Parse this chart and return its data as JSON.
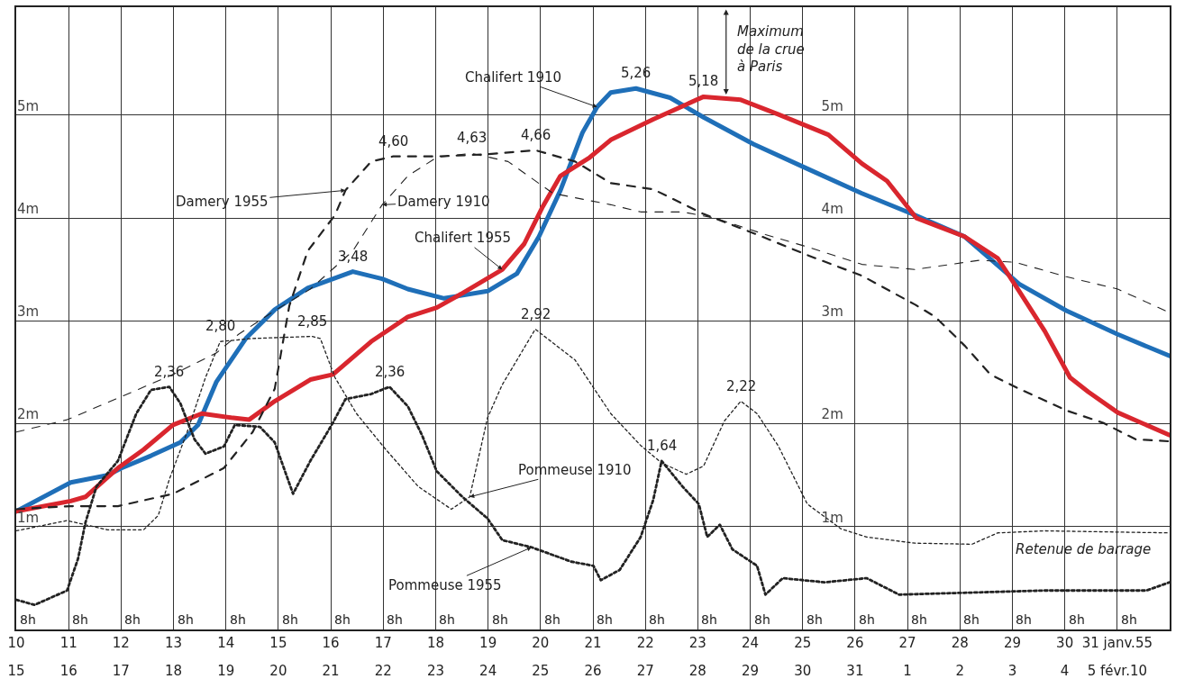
{
  "chart_data": {
    "type": "line",
    "xlim": [
      10,
      32
    ],
    "ylim": [
      0,
      6.05
    ],
    "xticks": [
      10,
      11,
      12,
      13,
      14,
      15,
      16,
      17,
      18,
      19,
      20,
      21,
      22,
      23,
      24,
      25,
      26,
      27,
      28,
      29,
      30,
      {
        "value": 31,
        "label": "31 janv.55"
      }
    ],
    "x2lim": [
      "--01-15",
      "--02-06"
    ],
    "x2ticks": [
      {
        "value": "--01-15",
        "label": "15"
      },
      {
        "value": "--01-16",
        "label": "16"
      },
      {
        "value": "--01-17",
        "label": "17"
      },
      {
        "value": "--01-18",
        "label": "18"
      },
      {
        "value": "--01-19",
        "label": "19"
      },
      {
        "value": "--01-20",
        "label": "20"
      },
      {
        "value": "--01-21",
        "label": "21"
      },
      {
        "value": "--01-22",
        "label": "22"
      },
      {
        "value": "--01-23",
        "label": "23"
      },
      {
        "value": "--01-24",
        "label": "24"
      },
      {
        "value": "--01-25",
        "label": "25"
      },
      {
        "value": "--01-26",
        "label": "26"
      },
      {
        "value": "--01-27",
        "label": "27"
      },
      {
        "value": "--01-28",
        "label": "28"
      },
      {
        "value": "--01-29",
        "label": "29"
      },
      {
        "value": "--01-30",
        "label": "30"
      },
      {
        "value": "--01-31",
        "label": "31"
      },
      {
        "value": "--02-01",
        "label": "1"
      },
      {
        "value": "--02-02",
        "label": "2"
      },
      {
        "value": "--02-03",
        "label": "3"
      },
      {
        "value": "--02-04",
        "label": "4"
      },
      {
        "value": "--02-05",
        "label": "5 févr.10"
      }
    ],
    "yticks": [
      {
        "value": 1,
        "label": "1m"
      },
      {
        "value": 2,
        "label": "2m"
      },
      {
        "value": 3,
        "label": "3m"
      },
      {
        "value": 4,
        "label": "4m"
      },
      {
        "value": 5,
        "label": "5m"
      }
    ],
    "y2lim": [
      0,
      6.05
    ],
    "y2ticks": [
      {
        "value": 1,
        "label": "1m"
      },
      {
        "value": 2,
        "label": "2m"
      },
      {
        "value": 3,
        "label": "3m"
      },
      {
        "value": 4,
        "label": "4m"
      },
      {
        "value": 5,
        "label": "5m"
      }
    ],
    "grid": true,
    "series": [
      {
        "name": "Chalifert 1910",
        "color": "#1f6fb8",
        "line_style": "solid",
        "x": [
          10,
          11.04,
          11.74,
          12.01,
          12.57,
          13.13,
          13.47,
          13.82,
          14.38,
          14.93,
          15.56,
          16.42,
          16.98,
          17.47,
          18.16,
          18.99,
          19.55,
          19.97,
          20.38,
          20.8,
          21.08,
          21.34,
          21.82,
          22.47,
          23.11,
          24.06,
          25.09,
          26.13,
          27.14,
          28.09,
          28.72,
          29.13,
          30.03,
          31.01,
          32
        ],
        "values": [
          1.15,
          1.43,
          1.5,
          1.57,
          1.69,
          1.82,
          1.99,
          2.41,
          2.83,
          3.11,
          3.32,
          3.48,
          3.41,
          3.31,
          3.22,
          3.29,
          3.46,
          3.82,
          4.27,
          4.83,
          5.08,
          5.22,
          5.26,
          5.17,
          4.98,
          4.72,
          4.48,
          4.24,
          4.03,
          3.82,
          3.54,
          3.36,
          3.1,
          2.87,
          2.66
        ],
        "value_labels": [
          null,
          null,
          null,
          null,
          null,
          null,
          null,
          null,
          null,
          null,
          null,
          "3,48",
          null,
          null,
          null,
          null,
          null,
          null,
          null,
          null,
          null,
          null,
          "5,26",
          null,
          null,
          null,
          null,
          null,
          null,
          null,
          null,
          null,
          null,
          null,
          null
        ]
      },
      {
        "name": "Chalifert 1955",
        "color": "#d9262e",
        "line_style": "solid",
        "x": [
          10,
          11.04,
          11.32,
          11.94,
          12.43,
          12.99,
          13.54,
          14.1,
          14.44,
          14.93,
          15.61,
          16.04,
          16.77,
          17.47,
          18.02,
          18.51,
          19.27,
          19.69,
          20.03,
          20.38,
          20.94,
          21.34,
          22.15,
          23.11,
          23.82,
          24.53,
          25.49,
          26.13,
          26.61,
          27.17,
          28.09,
          28.72,
          29.13,
          29.62,
          30.1,
          30.45,
          31.01,
          32
        ],
        "values": [
          1.15,
          1.25,
          1.29,
          1.57,
          1.75,
          1.99,
          2.1,
          2.06,
          2.04,
          2.22,
          2.43,
          2.48,
          2.8,
          3.04,
          3.13,
          3.27,
          3.5,
          3.75,
          4.1,
          4.41,
          4.59,
          4.76,
          4.96,
          5.18,
          5.15,
          5.01,
          4.81,
          4.53,
          4.36,
          4.0,
          3.82,
          3.61,
          3.29,
          2.9,
          2.45,
          2.31,
          2.11,
          1.89
        ],
        "value_labels": [
          null,
          null,
          null,
          null,
          null,
          null,
          null,
          null,
          null,
          null,
          null,
          null,
          null,
          null,
          null,
          null,
          null,
          null,
          null,
          null,
          null,
          null,
          null,
          "5,18",
          null,
          null,
          null,
          null,
          null,
          null,
          null,
          null,
          null,
          null,
          null,
          null,
          null,
          null
        ]
      },
      {
        "name": "Damery 1955",
        "color": "#222222",
        "line_style": "dashed",
        "x": [
          10,
          11.04,
          11.94,
          12.99,
          13.96,
          14.51,
          14.93,
          15.21,
          15.56,
          16.08,
          16.28,
          16.77,
          17.19,
          18.02,
          18.99,
          19.9,
          20.66,
          21.34,
          22.15,
          23.11,
          24.13,
          25.09,
          26.13,
          27.14,
          27.53,
          28.09,
          28.58,
          29.13,
          30.03,
          30.73,
          31.35,
          32
        ],
        "values": [
          1.17,
          1.2,
          1.2,
          1.32,
          1.57,
          1.92,
          2.34,
          3.15,
          3.68,
          4.03,
          4.27,
          4.55,
          4.6,
          4.6,
          4.62,
          4.66,
          4.55,
          4.34,
          4.28,
          4.04,
          3.84,
          3.64,
          3.44,
          3.16,
          3.04,
          2.76,
          2.48,
          2.34,
          2.13,
          2.01,
          1.85,
          1.83
        ],
        "value_labels": [
          null,
          null,
          null,
          null,
          null,
          null,
          null,
          null,
          null,
          null,
          null,
          null,
          "4,60",
          null,
          null,
          "4,66",
          null,
          null,
          null,
          null,
          null,
          null,
          null,
          null,
          null,
          null,
          null,
          null,
          null,
          null,
          null,
          null
        ]
      },
      {
        "name": "Damery 1910",
        "color": "#222222",
        "line_style": "dashed",
        "x": [
          10,
          10.97,
          11.94,
          12.99,
          13.82,
          14.24,
          14.93,
          15.61,
          16.42,
          16.98,
          17.47,
          18.02,
          18.68,
          19.38,
          20.24,
          21.34,
          21.91,
          22.71,
          23.33,
          24.29,
          25.09,
          26.13,
          27.14,
          28.37,
          29.06,
          30.03,
          31.01,
          32
        ],
        "values": [
          1.92,
          2.04,
          2.25,
          2.48,
          2.69,
          2.87,
          3.1,
          3.31,
          3.68,
          4.13,
          4.41,
          4.59,
          4.63,
          4.55,
          4.24,
          4.13,
          4.06,
          4.06,
          4.0,
          3.84,
          3.72,
          3.55,
          3.5,
          3.59,
          3.57,
          3.43,
          3.31,
          3.08
        ],
        "value_labels": [
          null,
          null,
          null,
          null,
          null,
          null,
          null,
          null,
          null,
          null,
          null,
          null,
          "4,63",
          null,
          null,
          null,
          null,
          null,
          null,
          null,
          null,
          null,
          null,
          null,
          null,
          null,
          null,
          null
        ]
      },
      {
        "name": "Pommeuse 1910",
        "color": "#222222",
        "line_style": "dotted",
        "x": [
          10,
          10.97,
          11.74,
          12.43,
          12.71,
          12.92,
          13.26,
          13.61,
          13.89,
          14.51,
          15.64,
          15.8,
          16.08,
          16.49,
          17.05,
          17.67,
          18.3,
          18.65,
          18.99,
          19.27,
          19.9,
          20.66,
          21.34,
          21.91,
          22.31,
          22.78,
          23.11,
          23.51,
          23.82,
          24.13,
          24.53,
          25.09,
          25.73,
          26.22,
          27.14,
          28.23,
          28.72,
          29.62,
          32
        ],
        "values": [
          0.96,
          1.06,
          0.97,
          0.97,
          1.11,
          1.46,
          1.92,
          2.45,
          2.8,
          2.83,
          2.85,
          2.83,
          2.45,
          2.1,
          1.75,
          1.39,
          1.17,
          1.29,
          2.06,
          2.38,
          2.92,
          2.62,
          2.1,
          1.79,
          1.62,
          1.51,
          1.59,
          2.03,
          2.22,
          2.1,
          1.79,
          1.22,
          0.98,
          0.9,
          0.84,
          0.83,
          0.94,
          0.96,
          0.94
        ],
        "value_labels": [
          null,
          null,
          null,
          null,
          null,
          null,
          null,
          null,
          "2,80",
          null,
          "2,85",
          null,
          null,
          null,
          null,
          null,
          null,
          null,
          null,
          null,
          "2,92",
          null,
          null,
          null,
          null,
          null,
          null,
          null,
          "2,22",
          null,
          null,
          null,
          null,
          null,
          null,
          null,
          null,
          null,
          null
        ]
      },
      {
        "name": "Pommeuse 1955",
        "color": "#222222",
        "line_style": "dotted",
        "x": [
          10,
          10.35,
          10.97,
          11.18,
          11.32,
          11.53,
          11.94,
          12.29,
          12.57,
          12.92,
          13.13,
          13.4,
          13.61,
          13.96,
          14.17,
          14.65,
          14.93,
          15.28,
          15.61,
          16.04,
          16.28,
          16.77,
          17.12,
          17.47,
          17.74,
          18.02,
          18.51,
          18.99,
          19.27,
          19.83,
          20.59,
          21.01,
          21.15,
          21.51,
          21.91,
          22.15,
          22.31,
          22.71,
          23.02,
          23.18,
          23.42,
          23.66,
          24.13,
          24.29,
          24.62,
          25.42,
          26.22,
          26.84,
          29.62,
          31.56,
          32
        ],
        "values": [
          0.29,
          0.24,
          0.38,
          0.69,
          1.04,
          1.39,
          1.64,
          2.1,
          2.33,
          2.36,
          2.2,
          1.85,
          1.71,
          1.78,
          1.99,
          1.97,
          1.82,
          1.32,
          1.64,
          2.01,
          2.24,
          2.29,
          2.36,
          2.17,
          1.89,
          1.54,
          1.29,
          1.08,
          0.87,
          0.8,
          0.66,
          0.62,
          0.48,
          0.58,
          0.9,
          1.26,
          1.64,
          1.39,
          1.22,
          0.9,
          1.02,
          0.78,
          0.62,
          0.34,
          0.5,
          0.46,
          0.5,
          0.34,
          0.38,
          0.38,
          0.46
        ],
        "value_labels": [
          null,
          null,
          null,
          null,
          null,
          null,
          null,
          null,
          null,
          "2,36",
          null,
          null,
          null,
          null,
          null,
          null,
          null,
          null,
          null,
          null,
          null,
          null,
          "2,36",
          null,
          null,
          null,
          null,
          null,
          null,
          null,
          null,
          null,
          null,
          null,
          null,
          null,
          "1,64",
          null,
          null,
          null,
          null,
          null,
          null,
          null,
          null,
          null,
          null,
          null,
          null,
          null,
          null
        ]
      }
    ],
    "annotations": [
      {
        "text": "Maximum\nde la crue\nà Paris",
        "x": 23.54,
        "y": 5.2
      },
      "Retenue de barrage",
      "8h",
      "8h",
      "8h",
      "8h",
      "8h",
      "8h",
      "8h",
      "8h",
      "8h",
      "8h",
      "8h",
      "8h",
      "8h",
      "8h",
      "8h",
      "8h",
      "8h",
      "8h",
      "8h",
      "8h",
      "8h",
      "8h"
    ]
  }
}
